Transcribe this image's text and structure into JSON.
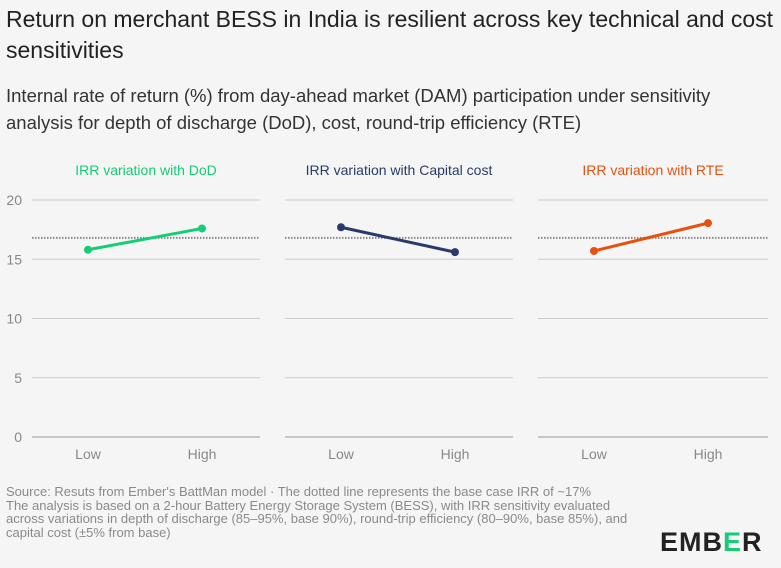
{
  "title": "Return on merchant BESS in India is resilient across key technical and cost sensitivities",
  "subtitle": "Internal rate of return (%) from day-ahead market (DAM) participation under sensitivity analysis for depth of discharge (DoD), cost, round-trip efficiency (RTE)",
  "footer": {
    "source": "Source: Resuts from Ember's BattMan model · The dotted line represents the base case IRR of ~17%",
    "note": "The analysis is based on a 2-hour Battery Energy Storage System (BESS), with IRR sensitivity evaluated across variations in depth of discharge (85–95%, base 90%), round-trip efficiency (80–90%, base 85%), and capital cost (±5% from base)"
  },
  "logo": {
    "pre": "EMB",
    "mid": "E",
    "post": "R"
  },
  "chart_data": [
    {
      "type": "line",
      "title": "IRR variation with DoD",
      "color": "#13ce74",
      "categories": [
        "Low",
        "High"
      ],
      "values": [
        15.8,
        17.6
      ],
      "baseline": 16.8,
      "ylim": [
        0,
        20
      ],
      "yticks": [
        "0",
        "5",
        "10",
        "15",
        "20"
      ]
    },
    {
      "type": "line",
      "title": "IRR variation with Capital cost",
      "color": "#2b3a6b",
      "categories": [
        "Low",
        "High"
      ],
      "values": [
        17.7,
        15.6
      ],
      "baseline": 16.8,
      "ylim": [
        0,
        20
      ]
    },
    {
      "type": "line",
      "title": "IRR variation with RTE",
      "color": "#e8500f",
      "categories": [
        "Low",
        "High"
      ],
      "values": [
        15.7,
        18.05
      ],
      "baseline": 16.8,
      "ylim": [
        0,
        20
      ]
    }
  ]
}
